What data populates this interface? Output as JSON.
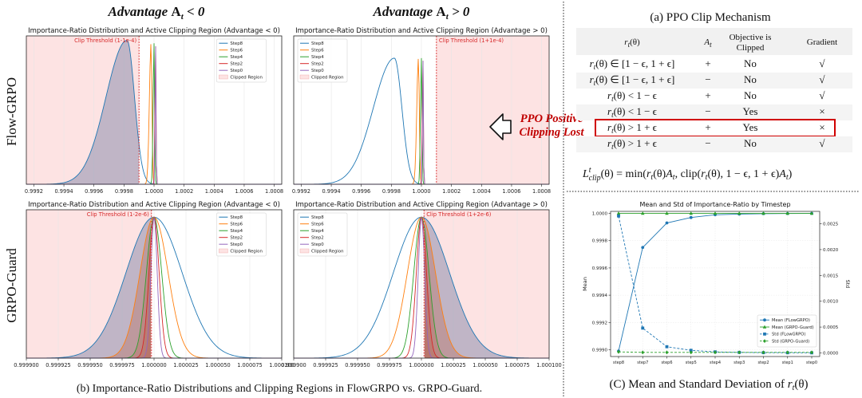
{
  "left_figure": {
    "col_headers": [
      "Advantage A_t < 0",
      "Advantage A_t > 0"
    ],
    "row_labels": [
      "Flow-GRPO",
      "GRPO-Guard"
    ],
    "caption": "(b)  Importance-Ratio Distributions and Clipping Regions in FlowGRPO vs. GRPO-Guard.",
    "annotation": "PPO Positive Clipping Lost"
  },
  "ppo_table": {
    "title": "(a) PPO Clip Mechanism",
    "headers": [
      "r_t(θ)",
      "A_t",
      "Objective is Clipped",
      "Gradient"
    ],
    "rows": [
      {
        "ratio": "r_t(θ) ∈ [1 − ϵ, 1 + ϵ]",
        "adv": "+",
        "clipped": "No",
        "grad": "√",
        "highlight": false
      },
      {
        "ratio": "r_t(θ) ∈ [1 − ϵ, 1 + ϵ]",
        "adv": "−",
        "clipped": "No",
        "grad": "√",
        "highlight": false
      },
      {
        "ratio": "r_t(θ) < 1 − ϵ",
        "adv": "+",
        "clipped": "No",
        "grad": "√",
        "highlight": false
      },
      {
        "ratio": "r_t(θ) < 1 − ϵ",
        "adv": "−",
        "clipped": "Yes",
        "grad": "×",
        "highlight": false
      },
      {
        "ratio": "r_t(θ) > 1 + ϵ",
        "adv": "+",
        "clipped": "Yes",
        "grad": "×",
        "highlight": true
      },
      {
        "ratio": "r_t(θ) > 1 + ϵ",
        "adv": "−",
        "clipped": "No",
        "grad": "√",
        "highlight": false
      }
    ],
    "formula": "L^t_clip(θ) = min(r_t(θ)A_t, clip(r_t(θ), 1 − ϵ, 1 + ϵ)A_t)"
  },
  "chart_data": [
    {
      "type": "line",
      "title": "Importance-Ratio Distribution and Active Clipping Region (Advantage < 0)",
      "xlim": [
        0.99915,
        1.00085
      ],
      "xticks": [
        "0.9992",
        "0.9994",
        "0.9996",
        "0.9998",
        "1.0000",
        "1.0002",
        "1.0004",
        "1.0006",
        "1.0008"
      ],
      "xtick_values": [
        0.9992,
        0.9994,
        0.9996,
        0.9998,
        1.0,
        1.0002,
        1.0004,
        1.0006,
        1.0008
      ],
      "clip_threshold": {
        "label": "Clip Threshold (1-1e-4)",
        "value": 0.9999,
        "side": "left"
      },
      "legend": [
        "Step8",
        "Step6",
        "Step4",
        "Step2",
        "Step0",
        "Clipped Region"
      ],
      "legend_position": "top-right",
      "series": [
        {
          "name": "Step8",
          "color": "#1f77b4",
          "center": 0.99982,
          "sigma_left": 0.00014,
          "sigma_right": 5e-05,
          "peak": 0.97
        },
        {
          "name": "Step6",
          "color": "#ff7f0e",
          "center": 0.99998,
          "sigma_left": 1.1e-05,
          "sigma_right": 6e-06,
          "peak": 0.95
        },
        {
          "name": "Step4",
          "color": "#2ca02c",
          "center": 1.0,
          "sigma_left": 6e-06,
          "sigma_right": 4e-06,
          "peak": 0.95
        },
        {
          "name": "Step2",
          "color": "#d62728",
          "center": 1.00001,
          "sigma_left": 4e-06,
          "sigma_right": 3e-06,
          "peak": 0.95
        },
        {
          "name": "Step0",
          "color": "#9467bd",
          "center": 1.00001,
          "sigma_left": 3e-06,
          "sigma_right": 3e-06,
          "peak": 0.95
        }
      ]
    },
    {
      "type": "line",
      "title": "Importance-Ratio Distribution and Active Clipping Region (Advantage > 0)",
      "xlim": [
        0.99915,
        1.00085
      ],
      "xticks": [
        "0.9992",
        "0.9994",
        "0.9996",
        "0.9998",
        "1.0000",
        "1.0002",
        "1.0004",
        "1.0006",
        "1.0008"
      ],
      "xtick_values": [
        0.9992,
        0.9994,
        0.9996,
        0.9998,
        1.0,
        1.0002,
        1.0004,
        1.0006,
        1.0008
      ],
      "clip_threshold": {
        "label": "Clip Threshold (1+1e-4)",
        "value": 1.0001,
        "side": "right"
      },
      "legend": [
        "Step8",
        "Step6",
        "Step4",
        "Step2",
        "Step0",
        "Clipped Region"
      ],
      "legend_position": "top-left",
      "series": [
        {
          "name": "Step8",
          "color": "#1f77b4",
          "center": 0.99982,
          "sigma_left": 0.00014,
          "sigma_right": 5e-05,
          "peak": 0.85
        },
        {
          "name": "Step6",
          "color": "#ff7f0e",
          "center": 0.99998,
          "sigma_left": 1.1e-05,
          "sigma_right": 6e-06,
          "peak": 0.85
        },
        {
          "name": "Step4",
          "color": "#2ca02c",
          "center": 1.0,
          "sigma_left": 6e-06,
          "sigma_right": 4e-06,
          "peak": 0.85
        },
        {
          "name": "Step2",
          "color": "#d62728",
          "center": 1.00001,
          "sigma_left": 4e-06,
          "sigma_right": 3e-06,
          "peak": 0.85
        },
        {
          "name": "Step0",
          "color": "#9467bd",
          "center": 1.00001,
          "sigma_left": 3e-06,
          "sigma_right": 3e-06,
          "peak": 0.85
        }
      ]
    },
    {
      "type": "line",
      "title": "Importance-Ratio Distribution and Active Clipping Region (Advantage < 0)",
      "xlim": [
        0.9999,
        1.0001
      ],
      "xticks": [
        "0.999900",
        "0.999925",
        "0.999950",
        "0.999975",
        "1.000000",
        "1.000025",
        "1.000050",
        "1.000075",
        "1.000100"
      ],
      "xtick_values": [
        0.9999,
        0.999925,
        0.99995,
        0.999975,
        1.0,
        1.000025,
        1.00005,
        1.000075,
        1.0001
      ],
      "clip_threshold": {
        "label": "Clip Threshold (1-2e-6)",
        "value": 0.999998,
        "side": "left"
      },
      "legend": [
        "Step8",
        "Step6",
        "Step4",
        "Step2",
        "Step0",
        "Clipped Region"
      ],
      "legend_position": "top-right",
      "series": [
        {
          "name": "Step8",
          "color": "#1f77b4",
          "center": 1.0,
          "sigma_left": 2.2e-05,
          "sigma_right": 2.2e-05,
          "peak": 0.95
        },
        {
          "name": "Step6",
          "color": "#ff7f0e",
          "center": 1.0,
          "sigma_left": 1.1e-05,
          "sigma_right": 1.1e-05,
          "peak": 0.95
        },
        {
          "name": "Step4",
          "color": "#2ca02c",
          "center": 1.0,
          "sigma_left": 6e-06,
          "sigma_right": 6e-06,
          "peak": 0.95
        },
        {
          "name": "Step2",
          "color": "#d62728",
          "center": 1.0,
          "sigma_left": 4e-06,
          "sigma_right": 4e-06,
          "peak": 0.95
        },
        {
          "name": "Step0",
          "color": "#9467bd",
          "center": 1.0,
          "sigma_left": 2.5e-06,
          "sigma_right": 2.5e-06,
          "peak": 0.95
        }
      ]
    },
    {
      "type": "line",
      "title": "Importance-Ratio Distribution and Active Clipping Region (Advantage > 0)",
      "xlim": [
        0.9999,
        1.0001
      ],
      "xticks": [
        "0.999900",
        "0.999925",
        "0.999950",
        "0.999975",
        "1.000000",
        "1.000025",
        "1.000050",
        "1.000075",
        "1.000100"
      ],
      "xtick_values": [
        0.9999,
        0.999925,
        0.99995,
        0.999975,
        1.0,
        1.000025,
        1.00005,
        1.000075,
        1.0001
      ],
      "clip_threshold": {
        "label": "Clip Threshold (1+2e-6)",
        "value": 1.000002,
        "side": "right"
      },
      "legend": [
        "Step8",
        "Step6",
        "Step4",
        "Step2",
        "Step0",
        "Clipped Region"
      ],
      "legend_position": "top-left",
      "series": [
        {
          "name": "Step8",
          "color": "#1f77b4",
          "center": 1.0,
          "sigma_left": 2.2e-05,
          "sigma_right": 2.2e-05,
          "peak": 0.95
        },
        {
          "name": "Step6",
          "color": "#ff7f0e",
          "center": 1.0,
          "sigma_left": 1.1e-05,
          "sigma_right": 1.1e-05,
          "peak": 0.95
        },
        {
          "name": "Step4",
          "color": "#2ca02c",
          "center": 1.0,
          "sigma_left": 6e-06,
          "sigma_right": 6e-06,
          "peak": 0.95
        },
        {
          "name": "Step2",
          "color": "#d62728",
          "center": 1.0,
          "sigma_left": 4e-06,
          "sigma_right": 4e-06,
          "peak": 0.95
        },
        {
          "name": "Step0",
          "color": "#9467bd",
          "center": 1.0,
          "sigma_left": 2.5e-06,
          "sigma_right": 2.5e-06,
          "peak": 0.95
        }
      ]
    },
    {
      "type": "line",
      "title": "Mean and Std of Importance-Ratio by Timestep",
      "caption": "(C) Mean and Standard Deviation of r_t(θ)",
      "xlabel": "",
      "ylabel": "Mean",
      "ylabel_right": "Std",
      "categories": [
        "step8",
        "step7",
        "step6",
        "step5",
        "step4",
        "step3",
        "step2",
        "step1",
        "step0"
      ],
      "ylim": [
        0.99895,
        1.000015
      ],
      "yticks": [
        "1.0000",
        "0.9998",
        "0.9996",
        "0.9994",
        "0.9992",
        "0.9990"
      ],
      "ytick_values": [
        1.0,
        0.9998,
        0.9996,
        0.9994,
        0.9992,
        0.999
      ],
      "ylim_right": [
        -7e-05,
        0.00274
      ],
      "yticks_right": [
        "0.0025",
        "0.0020",
        "0.0015",
        "0.0010",
        "0.0005",
        "0.0000"
      ],
      "ytick_values_right": [
        0.0025,
        0.002,
        0.0015,
        0.001,
        0.0005,
        0.0
      ],
      "legend_position": "lower-right",
      "series": [
        {
          "name": "Mean (FLowGRPO)",
          "axis": "left",
          "color": "#1f77b4",
          "style": "solid",
          "marker": "circle",
          "values": [
            0.99899,
            0.99975,
            0.99993,
            0.99997,
            0.99999,
            0.999995,
            0.999998,
            0.999999,
            1.0
          ]
        },
        {
          "name": "Mean (GRPO-Guard)",
          "axis": "left",
          "color": "#2ca02c",
          "style": "solid",
          "marker": "triangle",
          "values": [
            1.0,
            1.0,
            1.0,
            1.0,
            1.0,
            1.0,
            1.0,
            1.0,
            1.0
          ]
        },
        {
          "name": "Std (FLowGRPO)",
          "axis": "right",
          "color": "#1f77b4",
          "style": "dashed",
          "marker": "square",
          "values": [
            0.00265,
            0.00048,
            0.00012,
            5e-05,
            2e-05,
            1e-05,
            5e-06,
            3e-06,
            2e-06
          ]
        },
        {
          "name": "Std (GRPO-Guard)",
          "axis": "right",
          "color": "#2ca02c",
          "style": "dashed",
          "marker": "diamond",
          "values": [
            2e-05,
            1e-05,
            1e-05,
            1e-05,
            1e-05,
            1e-05,
            1e-05,
            1e-05,
            1e-05
          ]
        }
      ]
    }
  ]
}
